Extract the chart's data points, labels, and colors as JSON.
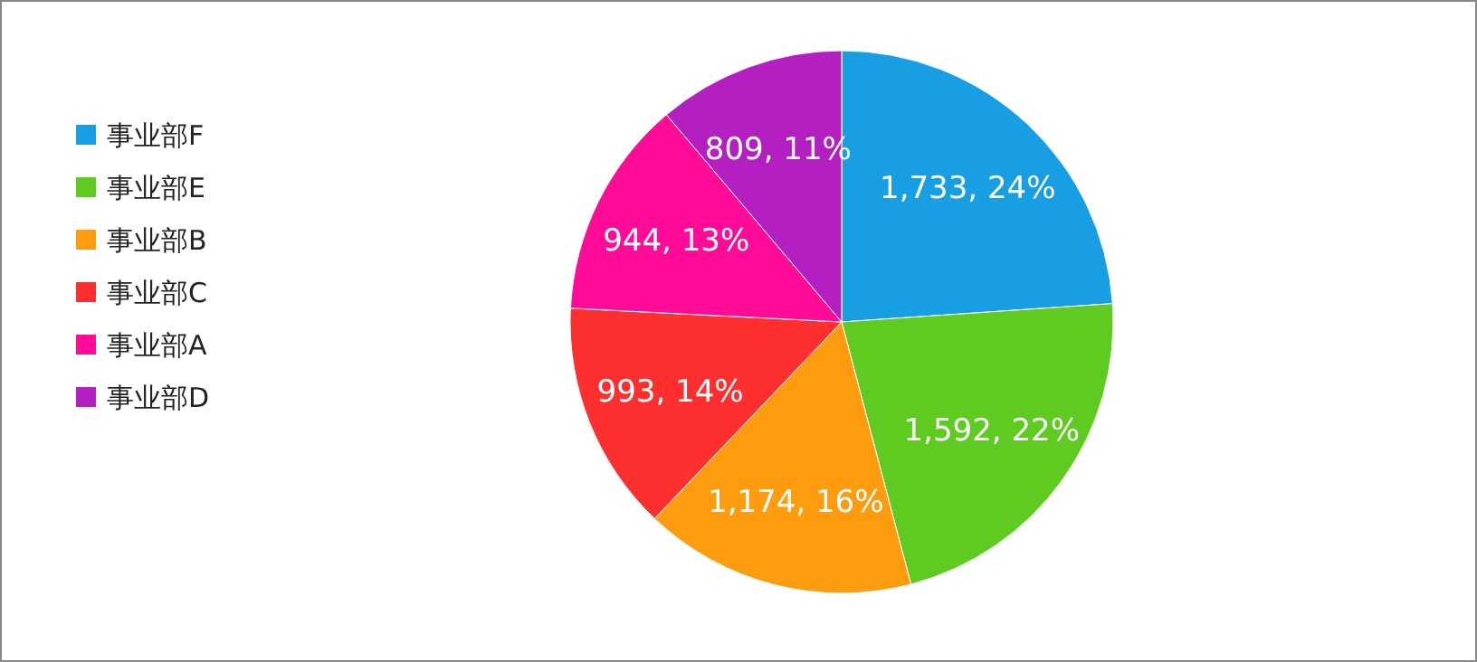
{
  "chart_data": {
    "type": "pie",
    "categories": [
      "事业部F",
      "事业部E",
      "事业部B",
      "事业部C",
      "事业部A",
      "事业部D"
    ],
    "values": [
      1733,
      1592,
      1174,
      993,
      944,
      809
    ],
    "colors": [
      "#179ee3",
      "#5fcb21",
      "#fd9c0e",
      "#fe2f2f",
      "#fe0c98",
      "#b41fc2"
    ],
    "value_labels": [
      "1,733, 24%",
      "1,592, 22%",
      "1,174, 16%",
      "993, 14%",
      "944, 13%",
      "809, 11%"
    ],
    "legend": "left"
  }
}
